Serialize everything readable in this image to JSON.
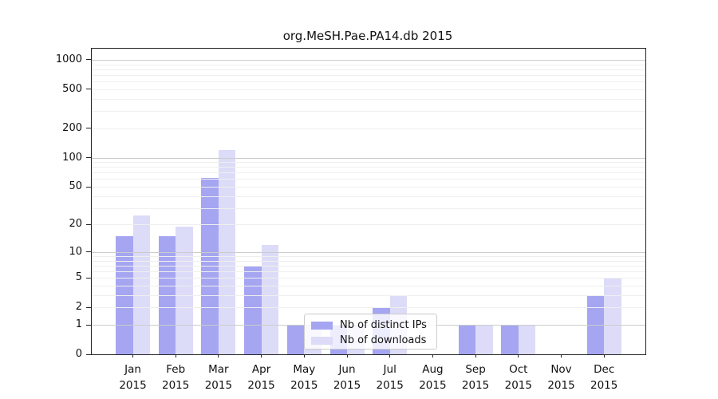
{
  "chart_data": {
    "type": "bar",
    "title": "org.MeSH.Pae.PA14.db 2015",
    "categories": [
      "Jan",
      "Feb",
      "Mar",
      "Apr",
      "May",
      "Jun",
      "Jul",
      "Aug",
      "Sep",
      "Oct",
      "Nov",
      "Dec"
    ],
    "category_year": "2015",
    "series": [
      {
        "name": "Nb of distinct IPs",
        "color": "#a5a5f2",
        "values": [
          15,
          15,
          62,
          7,
          1,
          1,
          2,
          0,
          1,
          1,
          0,
          3
        ]
      },
      {
        "name": "Nb of downloads",
        "color": "#dcdcf8",
        "values": [
          25,
          19,
          120,
          12,
          1,
          1,
          3,
          0,
          1,
          1,
          0,
          5
        ]
      }
    ],
    "yscale": "log1p",
    "y_ticks": [
      0,
      1,
      2,
      5,
      10,
      20,
      50,
      100,
      200,
      500,
      1000
    ],
    "y_major_gridlines": [
      1,
      10,
      100,
      1000
    ],
    "y_minor_gridlines": [
      2,
      3,
      4,
      5,
      6,
      7,
      8,
      9,
      20,
      30,
      40,
      50,
      60,
      70,
      80,
      90,
      200,
      300,
      400,
      500,
      600,
      700,
      800,
      900
    ],
    "ylim": [
      0,
      1300
    ],
    "grid": true,
    "legend_position": "lower-center",
    "colors": {
      "major_grid": "#cccccc",
      "minor_grid": "#efefef",
      "spine": "#222222",
      "text": "#111111",
      "background": "#ffffff"
    }
  }
}
